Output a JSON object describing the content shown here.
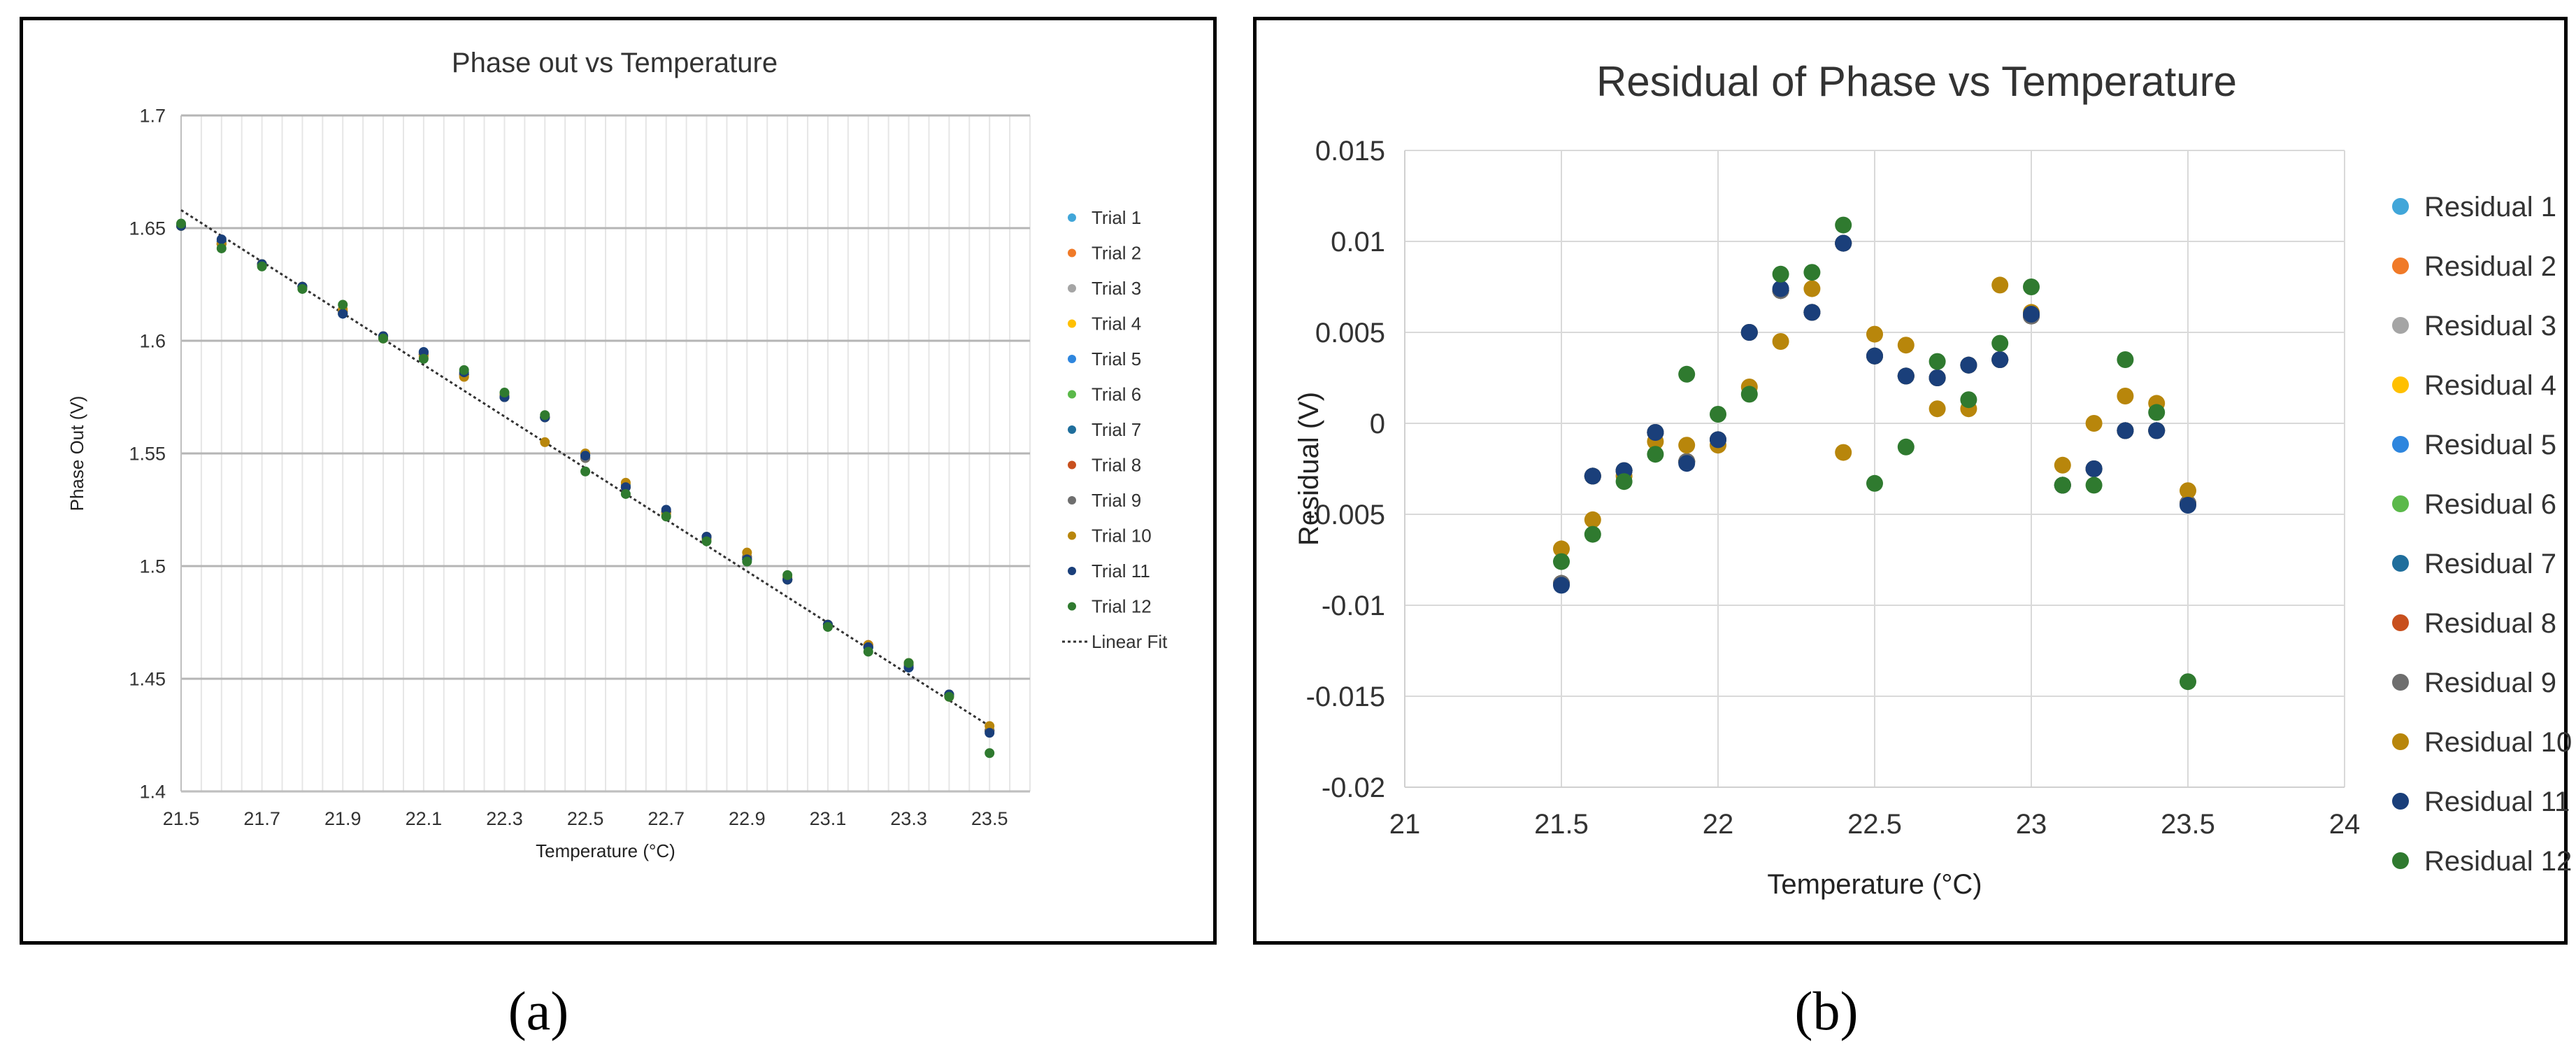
{
  "captions": {
    "a": "(a)",
    "b": "(b)"
  },
  "chart_data": [
    {
      "type": "scatter",
      "title": "Phase out vs Temperature",
      "xlabel": "Temperature (°C)",
      "ylabel": "Phase Out (V)",
      "xlim": [
        21.5,
        23.6
      ],
      "ylim": [
        1.4,
        1.7
      ],
      "xticks": [
        "21.5",
        "21.7",
        "21.9",
        "22.1",
        "22.3",
        "22.5",
        "22.7",
        "22.9",
        "23.1",
        "23.3",
        "23.5"
      ],
      "yticks": [
        "1.4",
        "1.45",
        "1.5",
        "1.55",
        "1.6",
        "1.65",
        "1.7"
      ],
      "grid": true,
      "legend_position": "right",
      "x": [
        21.5,
        21.6,
        21.7,
        21.8,
        21.9,
        22.0,
        22.1,
        22.2,
        22.3,
        22.4,
        22.5,
        22.6,
        22.7,
        22.8,
        22.9,
        23.0,
        23.1,
        23.2,
        23.3,
        23.4,
        23.5
      ],
      "series": [
        {
          "name": "Trial 1",
          "color": "#41a6d9",
          "values": [
            1.651,
            1.643,
            1.634,
            1.624,
            1.613,
            1.602,
            1.594,
            1.585,
            1.575,
            1.566,
            1.548,
            1.535,
            1.524,
            1.513,
            1.504,
            1.494,
            1.474,
            1.464,
            1.456,
            1.443,
            1.427
          ]
        },
        {
          "name": "Trial 2",
          "color": "#f07a28",
          "values": [
            1.651,
            1.643,
            1.634,
            1.624,
            1.613,
            1.602,
            1.594,
            1.584,
            1.575,
            1.566,
            1.548,
            1.535,
            1.524,
            1.513,
            1.504,
            1.494,
            1.474,
            1.465,
            1.456,
            1.443,
            1.427
          ]
        },
        {
          "name": "Trial 3",
          "color": "#a5a5a5",
          "values": [
            1.651,
            1.643,
            1.634,
            1.624,
            1.613,
            1.602,
            1.594,
            1.585,
            1.575,
            1.566,
            1.548,
            1.535,
            1.524,
            1.513,
            1.504,
            1.494,
            1.474,
            1.464,
            1.456,
            1.443,
            1.427
          ]
        },
        {
          "name": "Trial 4",
          "color": "#ffc000",
          "values": [
            1.651,
            1.643,
            1.634,
            1.624,
            1.613,
            1.602,
            1.594,
            1.585,
            1.575,
            1.566,
            1.548,
            1.535,
            1.524,
            1.513,
            1.504,
            1.494,
            1.474,
            1.464,
            1.456,
            1.443,
            1.427
          ]
        },
        {
          "name": "Trial 5",
          "color": "#2e86de",
          "values": [
            1.651,
            1.644,
            1.634,
            1.624,
            1.612,
            1.602,
            1.595,
            1.585,
            1.575,
            1.566,
            1.549,
            1.536,
            1.524,
            1.513,
            1.503,
            1.494,
            1.474,
            1.464,
            1.455,
            1.443,
            1.427
          ]
        },
        {
          "name": "Trial 6",
          "color": "#5bb94a",
          "values": [
            1.651,
            1.643,
            1.634,
            1.624,
            1.613,
            1.602,
            1.594,
            1.585,
            1.575,
            1.566,
            1.548,
            1.535,
            1.524,
            1.513,
            1.504,
            1.494,
            1.474,
            1.464,
            1.456,
            1.443,
            1.427
          ]
        },
        {
          "name": "Trial 7",
          "color": "#1f6e9c",
          "values": [
            1.651,
            1.644,
            1.634,
            1.624,
            1.612,
            1.602,
            1.595,
            1.585,
            1.575,
            1.566,
            1.549,
            1.536,
            1.524,
            1.513,
            1.503,
            1.494,
            1.474,
            1.464,
            1.455,
            1.443,
            1.427
          ]
        },
        {
          "name": "Trial 8",
          "color": "#c8501e",
          "values": [
            1.651,
            1.643,
            1.634,
            1.624,
            1.613,
            1.602,
            1.594,
            1.585,
            1.575,
            1.566,
            1.548,
            1.535,
            1.524,
            1.513,
            1.504,
            1.494,
            1.474,
            1.465,
            1.456,
            1.443,
            1.427
          ]
        },
        {
          "name": "Trial 9",
          "color": "#6e6e6e",
          "values": [
            1.651,
            1.643,
            1.634,
            1.624,
            1.613,
            1.602,
            1.594,
            1.585,
            1.575,
            1.566,
            1.548,
            1.535,
            1.524,
            1.513,
            1.504,
            1.494,
            1.474,
            1.464,
            1.456,
            1.443,
            1.427
          ]
        },
        {
          "name": "Trial 10",
          "color": "#b8860b",
          "values": [
            1.651,
            1.643,
            1.634,
            1.624,
            1.614,
            1.601,
            1.593,
            1.584,
            1.576,
            1.555,
            1.55,
            1.537,
            1.523,
            1.512,
            1.506,
            1.495,
            1.474,
            1.465,
            1.457,
            1.442,
            1.429
          ]
        },
        {
          "name": "Trial 11",
          "color": "#1a3f7a",
          "values": [
            1.651,
            1.645,
            1.634,
            1.624,
            1.612,
            1.602,
            1.595,
            1.586,
            1.575,
            1.566,
            1.549,
            1.535,
            1.525,
            1.513,
            1.503,
            1.494,
            1.474,
            1.464,
            1.455,
            1.443,
            1.426
          ]
        },
        {
          "name": "Trial 12",
          "color": "#2f7a2f",
          "values": [
            1.652,
            1.641,
            1.633,
            1.623,
            1.616,
            1.601,
            1.592,
            1.587,
            1.577,
            1.567,
            1.542,
            1.532,
            1.522,
            1.511,
            1.502,
            1.496,
            1.473,
            1.462,
            1.457,
            1.442,
            1.417
          ]
        }
      ],
      "fit": {
        "name": "Linear Fit",
        "from": [
          21.5,
          1.658
        ],
        "to": [
          23.5,
          1.429
        ],
        "color": "#333333"
      }
    },
    {
      "type": "scatter",
      "title": "Residual of Phase vs Temperature",
      "xlabel": "Temperature (°C)",
      "ylabel": "Residual (V)",
      "xlim": [
        21,
        24
      ],
      "ylim": [
        -0.02,
        0.015
      ],
      "xticks": [
        "21",
        "21.5",
        "22",
        "22.5",
        "23",
        "23.5",
        "24"
      ],
      "yticks": [
        "-0.02",
        "-0.015",
        "-0.01",
        "-0.005",
        "0",
        "0.005",
        "0.01",
        "0.015"
      ],
      "grid": true,
      "legend_position": "right",
      "x": [
        21.5,
        21.6,
        21.7,
        21.8,
        21.9,
        22.0,
        22.1,
        22.2,
        22.3,
        22.4,
        22.5,
        22.6,
        22.7,
        22.8,
        22.9,
        23.0,
        23.1,
        23.2,
        23.3,
        23.4,
        23.5
      ],
      "series": [
        {
          "name": "Residual 1",
          "color": "#41a6d9",
          "values": [
            -0.0088,
            -0.0029,
            -0.0026,
            -0.0005,
            -0.0021,
            -0.0009,
            0.005,
            0.0073,
            0.0061,
            0.0099,
            0.0037,
            0.0026,
            0.0025,
            0.0032,
            0.0035,
            0.0059,
            -0.0034,
            -0.0025,
            -0.0004,
            -0.0004,
            -0.0044
          ]
        },
        {
          "name": "Residual 2",
          "color": "#f07a28",
          "values": [
            -0.0088,
            -0.0029,
            -0.0026,
            -0.0005,
            -0.0021,
            -0.0009,
            0.005,
            0.0073,
            0.0061,
            0.0099,
            0.0037,
            0.0026,
            0.0025,
            0.0032,
            0.0035,
            0.0059,
            -0.0034,
            -0.0025,
            -0.0004,
            -0.0004,
            -0.0044
          ]
        },
        {
          "name": "Residual 3",
          "color": "#a5a5a5",
          "values": [
            -0.0088,
            -0.0029,
            -0.0026,
            -0.0005,
            -0.0021,
            -0.0009,
            0.005,
            0.0073,
            0.0061,
            0.0099,
            0.0037,
            0.0026,
            0.0025,
            0.0032,
            0.0035,
            0.0059,
            -0.0034,
            -0.0025,
            -0.0004,
            -0.0004,
            -0.0044
          ]
        },
        {
          "name": "Residual 4",
          "color": "#ffc000",
          "values": [
            -0.0088,
            -0.0029,
            -0.0026,
            -0.0005,
            -0.0021,
            -0.0009,
            0.005,
            0.0073,
            0.0061,
            0.0099,
            0.0037,
            0.0026,
            0.0025,
            0.0032,
            0.0035,
            0.0059,
            -0.0034,
            -0.0025,
            -0.0004,
            -0.0004,
            -0.0044
          ]
        },
        {
          "name": "Residual 5",
          "color": "#2e86de",
          "values": [
            -0.0088,
            -0.0029,
            -0.0026,
            -0.0005,
            -0.0021,
            -0.0009,
            0.005,
            0.0073,
            0.0061,
            0.0099,
            0.0037,
            0.0026,
            0.0025,
            0.0032,
            0.0035,
            0.0059,
            -0.0034,
            -0.0025,
            -0.0004,
            -0.0004,
            -0.0044
          ]
        },
        {
          "name": "Residual 6",
          "color": "#5bb94a",
          "values": [
            -0.0088,
            -0.0029,
            -0.0026,
            -0.0005,
            -0.0021,
            -0.0009,
            0.005,
            0.0073,
            0.0061,
            0.0099,
            0.0037,
            0.0026,
            0.0025,
            0.0032,
            0.0035,
            0.0059,
            -0.0034,
            -0.0025,
            -0.0004,
            -0.0004,
            -0.0044
          ]
        },
        {
          "name": "Residual 7",
          "color": "#1f6e9c",
          "values": [
            -0.0088,
            -0.0029,
            -0.0026,
            -0.0005,
            -0.0021,
            -0.0009,
            0.005,
            0.0073,
            0.0061,
            0.0099,
            0.0037,
            0.0026,
            0.0025,
            0.0032,
            0.0035,
            0.0059,
            -0.0034,
            -0.0025,
            -0.0004,
            -0.0004,
            -0.0044
          ]
        },
        {
          "name": "Residual 8",
          "color": "#c8501e",
          "values": [
            -0.0088,
            -0.0029,
            -0.0026,
            -0.0005,
            -0.0021,
            -0.0009,
            0.005,
            0.0073,
            0.0061,
            0.0099,
            0.0037,
            0.0026,
            0.0025,
            0.0032,
            0.0035,
            0.0059,
            -0.0034,
            -0.0025,
            -0.0004,
            -0.0004,
            -0.0044
          ]
        },
        {
          "name": "Residual 9",
          "color": "#6e6e6e",
          "values": [
            -0.0088,
            -0.0029,
            -0.0026,
            -0.0005,
            -0.0021,
            -0.0009,
            0.005,
            0.0073,
            0.0061,
            0.0099,
            0.0037,
            0.0026,
            0.0025,
            0.0032,
            0.0035,
            0.0059,
            -0.0034,
            -0.0025,
            -0.0004,
            -0.0004,
            -0.0044
          ]
        },
        {
          "name": "Residual 10",
          "color": "#b8860b",
          "values": [
            -0.0069,
            -0.0053,
            -0.0029,
            -0.001,
            -0.0012,
            -0.0012,
            0.002,
            0.0045,
            0.0074,
            -0.0016,
            0.0049,
            0.0043,
            0.0008,
            0.0008,
            0.0076,
            0.0061,
            -0.0023,
            0.0,
            0.0015,
            0.0011,
            -0.0037
          ]
        },
        {
          "name": "Residual 11",
          "color": "#1a3f7a",
          "values": [
            -0.0089,
            -0.0029,
            -0.0026,
            -0.0005,
            -0.0022,
            -0.0009,
            0.005,
            0.0074,
            0.0061,
            0.0099,
            0.0037,
            0.0026,
            0.0025,
            0.0032,
            0.0035,
            0.006,
            -0.0034,
            -0.0025,
            -0.0004,
            -0.0004,
            -0.0045
          ]
        },
        {
          "name": "Residual 12",
          "color": "#2f7a2f",
          "values": [
            -0.0076,
            -0.0061,
            -0.0032,
            -0.0017,
            0.0027,
            0.0005,
            0.0016,
            0.0082,
            0.0083,
            0.0109,
            -0.0033,
            -0.0013,
            0.0034,
            0.0013,
            0.0044,
            0.0075,
            -0.0034,
            -0.0034,
            0.0035,
            0.0006,
            -0.0142
          ]
        }
      ]
    }
  ]
}
